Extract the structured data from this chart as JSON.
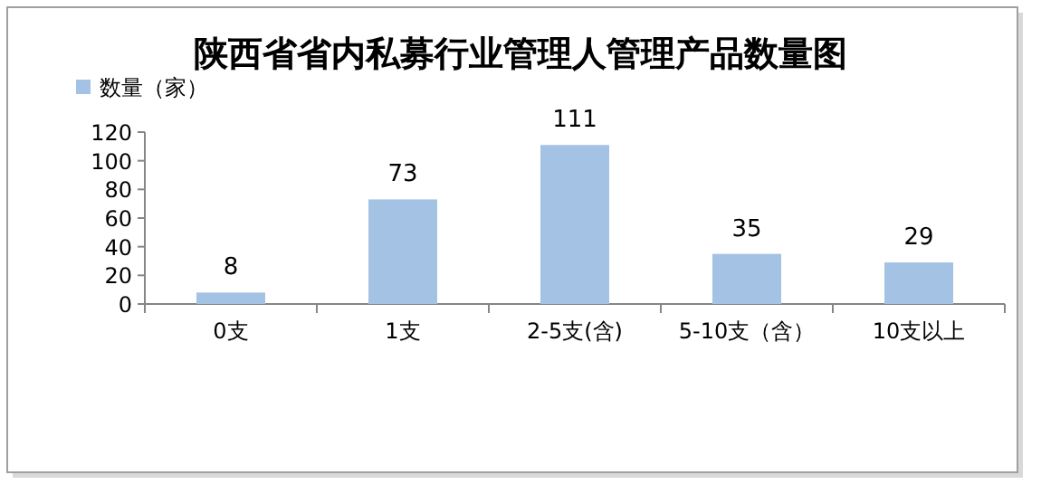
{
  "chart_data": {
    "type": "bar",
    "title": "陕西省省内私募行业管理人管理产品数量图",
    "categories": [
      "0支",
      "1支",
      "2-5支(含)",
      "5-10支（含）",
      "10支以上"
    ],
    "series": [
      {
        "name": "数量（家）",
        "color": "#a4c2e4",
        "values": [
          8,
          73,
          111,
          35,
          29
        ]
      }
    ],
    "ylim": [
      0,
      120
    ],
    "yticks": [
      0,
      20,
      40,
      60,
      80,
      100,
      120
    ],
    "data_labels": true,
    "legend": "top left"
  }
}
